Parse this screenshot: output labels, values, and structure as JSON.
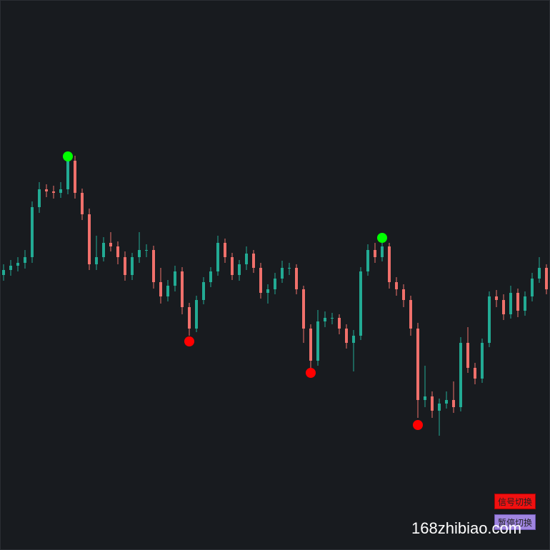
{
  "chart_data": {
    "type": "candlestick",
    "ylim": [
      0,
      770
    ],
    "up_color": "#22ab94",
    "down_color": "#f0706b",
    "open": [
      385,
      392,
      398,
      402,
      410,
      480,
      505,
      502,
      500,
      505,
      545,
      500,
      470,
      400,
      410,
      430,
      425,
      410,
      385,
      410,
      420,
      420,
      375,
      355,
      370,
      390,
      340,
      310,
      350,
      375,
      390,
      430,
      410,
      385,
      400,
      415,
      395,
      360,
      365,
      380,
      395,
      395,
      365,
      310,
      265,
      320,
      325,
      325,
      310,
      290,
      300,
      390,
      420,
      410,
      425,
      375,
      365,
      350,
      310,
      210,
      215,
      195,
      205,
      210,
      200,
      290,
      255,
      240,
      290,
      355,
      350,
      330,
      360,
      335,
      355,
      380,
      395
    ],
    "high": [
      400,
      406,
      410,
      420,
      488,
      515,
      512,
      510,
      515,
      555,
      552,
      506,
      478,
      440,
      438,
      445,
      432,
      418,
      416,
      445,
      428,
      426,
      395,
      378,
      398,
      396,
      346,
      356,
      382,
      396,
      440,
      436,
      416,
      406,
      425,
      420,
      402,
      372,
      388,
      405,
      402,
      400,
      370,
      316,
      336,
      334,
      332,
      330,
      316,
      308,
      396,
      428,
      430,
      437,
      430,
      382,
      372,
      356,
      318,
      258,
      222,
      212,
      222,
      236,
      298,
      312,
      262,
      296,
      362,
      364,
      358,
      370,
      366,
      362,
      388,
      410,
      400
    ],
    "low": [
      377,
      384,
      390,
      394,
      402,
      472,
      494,
      492,
      493,
      498,
      492,
      462,
      392,
      392,
      404,
      418,
      400,
      377,
      378,
      402,
      410,
      366,
      345,
      348,
      362,
      330,
      300,
      305,
      344,
      368,
      384,
      402,
      378,
      377,
      392,
      388,
      352,
      345,
      358,
      374,
      385,
      358,
      290,
      248,
      258,
      312,
      316,
      302,
      282,
      250,
      294,
      384,
      402,
      404,
      366,
      356,
      340,
      300,
      185,
      200,
      185,
      160,
      198,
      192,
      194,
      248,
      232,
      234,
      284,
      340,
      322,
      324,
      326,
      328,
      348,
      374,
      358
    ],
    "close": [
      392,
      398,
      402,
      410,
      480,
      505,
      502,
      500,
      505,
      545,
      500,
      470,
      400,
      410,
      430,
      425,
      410,
      385,
      410,
      420,
      420,
      375,
      355,
      370,
      390,
      340,
      310,
      350,
      375,
      390,
      430,
      410,
      385,
      400,
      415,
      395,
      360,
      365,
      380,
      395,
      395,
      365,
      310,
      265,
      320,
      325,
      325,
      310,
      290,
      300,
      390,
      420,
      410,
      425,
      375,
      365,
      350,
      310,
      210,
      215,
      195,
      205,
      210,
      200,
      290,
      255,
      240,
      290,
      355,
      350,
      330,
      360,
      335,
      355,
      380,
      395,
      365
    ],
    "markers": [
      {
        "candle": 9,
        "value": 551,
        "color": "#00ff00"
      },
      {
        "candle": 26,
        "value": 292,
        "color": "#ff0000"
      },
      {
        "candle": 43,
        "value": 248,
        "color": "#ff0000"
      },
      {
        "candle": 53,
        "value": 437,
        "color": "#00ff00"
      },
      {
        "candle": 58,
        "value": 175,
        "color": "#ff0000"
      }
    ]
  },
  "buttons": [
    "信号切换",
    "暂停切换"
  ],
  "watermark": "168zhibiao.com"
}
